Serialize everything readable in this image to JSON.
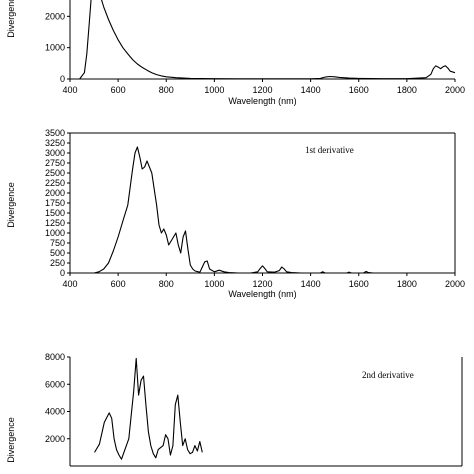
{
  "chart_data": [
    {
      "type": "line",
      "xlabel": "Wavelength (nm)",
      "ylabel": "Divergence",
      "xlim": [
        400,
        2000
      ],
      "ylim": [
        0,
        3000
      ],
      "x_ticks": [
        "400",
        "600",
        "800",
        "1000",
        "1200",
        "1400",
        "1600",
        "1800",
        "2000"
      ],
      "y_ticks": [
        "0",
        "1000",
        "2000"
      ],
      "annotation": "",
      "series": [
        {
          "x": [
            400,
            440,
            460,
            470,
            480,
            490,
            500,
            520,
            540,
            560,
            580,
            600,
            620,
            640,
            660,
            680,
            700,
            720,
            740,
            760,
            780,
            800,
            840,
            900,
            1000,
            1100,
            1200,
            1300,
            1400,
            1440,
            1460,
            1480,
            1500,
            1520,
            1560,
            1600,
            1700,
            1800,
            1880,
            1900,
            1910,
            1920,
            1930,
            1940,
            1950,
            1960,
            1970,
            1980,
            2000
          ],
          "y": [
            0,
            0,
            200,
            800,
            1800,
            2800,
            3000,
            2800,
            2300,
            1900,
            1550,
            1250,
            1000,
            800,
            620,
            480,
            370,
            280,
            200,
            140,
            100,
            70,
            40,
            20,
            10,
            5,
            5,
            5,
            5,
            20,
            60,
            80,
            70,
            50,
            30,
            20,
            10,
            10,
            40,
            150,
            330,
            420,
            380,
            330,
            390,
            420,
            350,
            250,
            200
          ]
        }
      ]
    },
    {
      "type": "line",
      "xlabel": "Wavelength (nm)",
      "ylabel": "Divergence",
      "xlim": [
        400,
        2000
      ],
      "ylim": [
        0,
        3500
      ],
      "x_ticks": [
        "400",
        "600",
        "800",
        "1000",
        "1200",
        "1400",
        "1600",
        "1800",
        "2000"
      ],
      "y_ticks": [
        "0",
        "250",
        "500",
        "750",
        "1000",
        "1250",
        "1500",
        "1750",
        "2000",
        "2250",
        "2500",
        "2750",
        "3000",
        "3250",
        "3500"
      ],
      "annotation": "1st derivative",
      "series": [
        {
          "x": [
            400,
            500,
            520,
            540,
            560,
            580,
            600,
            620,
            640,
            660,
            670,
            680,
            690,
            700,
            710,
            720,
            740,
            760,
            770,
            780,
            790,
            800,
            810,
            820,
            830,
            840,
            850,
            860,
            870,
            880,
            890,
            900,
            910,
            920,
            940,
            950,
            960,
            970,
            980,
            1000,
            1020,
            1040,
            1060,
            1100,
            1150,
            1180,
            1190,
            1200,
            1210,
            1220,
            1250,
            1270,
            1280,
            1290,
            1300,
            1320,
            1360,
            1400,
            1440,
            1450,
            1460,
            1500,
            1550,
            1560,
            1570,
            1600,
            1620,
            1630,
            1640,
            1660,
            1700,
            1800,
            1900,
            2000
          ],
          "y": [
            0,
            0,
            30,
            100,
            250,
            550,
            900,
            1300,
            1700,
            2600,
            3000,
            3150,
            2900,
            2600,
            2650,
            2800,
            2500,
            1700,
            1200,
            1000,
            1100,
            950,
            700,
            800,
            900,
            1000,
            700,
            500,
            900,
            1050,
            600,
            200,
            100,
            50,
            20,
            150,
            280,
            300,
            100,
            30,
            70,
            30,
            10,
            0,
            0,
            30,
            110,
            180,
            110,
            30,
            20,
            60,
            150,
            100,
            30,
            10,
            0,
            0,
            0,
            30,
            0,
            0,
            0,
            20,
            0,
            0,
            0,
            40,
            10,
            0,
            0,
            0,
            0,
            0
          ]
        }
      ]
    },
    {
      "type": "line",
      "xlabel": "",
      "ylabel": "Divergence",
      "xlim": [
        400,
        2000
      ],
      "ylim": [
        0,
        8000
      ],
      "x_ticks": [],
      "y_ticks": [
        "2000",
        "4000",
        "6000",
        "8000"
      ],
      "annotation": "2nd derivative",
      "series": [
        {
          "x": [
            500,
            520,
            540,
            560,
            570,
            580,
            590,
            600,
            610,
            620,
            640,
            660,
            670,
            680,
            690,
            700,
            710,
            720,
            730,
            740,
            750,
            760,
            780,
            790,
            800,
            810,
            820,
            830,
            840,
            850,
            860,
            870,
            880,
            890,
            900,
            910,
            920,
            930,
            940
          ],
          "y": [
            1000,
            1600,
            3200,
            3900,
            3500,
            2000,
            1200,
            800,
            500,
            1000,
            2000,
            5500,
            7900,
            5200,
            6300,
            6600,
            4500,
            2500,
            1500,
            900,
            600,
            1200,
            1500,
            2300,
            2000,
            800,
            1500,
            4500,
            5200,
            3200,
            1500,
            2000,
            1200,
            900,
            1000,
            1500,
            1100,
            1800,
            1000
          ]
        }
      ]
    }
  ]
}
